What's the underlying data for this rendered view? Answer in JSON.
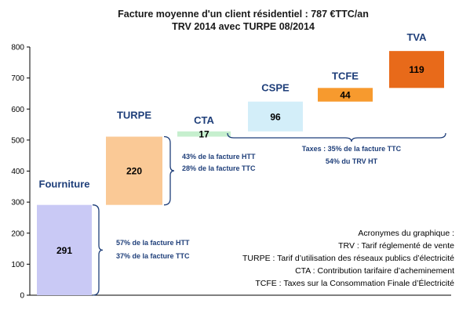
{
  "chart_data": {
    "type": "bar",
    "subtype": "waterfall",
    "title": "Facture moyenne d'un client résidentiel : 787 €TTC/an",
    "subtitle": "TRV 2014 avec TURPE 08/2014",
    "ylim": [
      0,
      800
    ],
    "yticks": [
      0,
      100,
      200,
      300,
      400,
      500,
      600,
      700,
      800
    ],
    "grid": false,
    "categories": [
      "Fourniture",
      "TURPE",
      "CTA",
      "CSPE",
      "TCFE",
      "TVA"
    ],
    "values": [
      291,
      220,
      17,
      96,
      44,
      119
    ],
    "colors": [
      "#c9c9f5",
      "#fac996",
      "#c6efce",
      "#d3eef9",
      "#f79a2e",
      "#e86a1a"
    ],
    "annotations": [
      {
        "lines": [
          "57% de la facture HTT",
          "37% de la facture TTC"
        ]
      },
      {
        "lines": [
          "43% de la facture HTT",
          "28% de la facture TTC"
        ]
      },
      {
        "lines": [
          "Taxes : 35% de la facture TTC",
          "54% du TRV HT"
        ]
      }
    ],
    "acronyms": [
      "Acronymes du graphique :",
      "TRV : Tarif réglementé de vente",
      "TURPE : Tarif d’utilisation des réseaux publics d’électricité",
      "CTA : Contribution tarifaire d’acheminement",
      "TCFE : Taxes sur la Consommation Finale d’Électricité"
    ]
  }
}
